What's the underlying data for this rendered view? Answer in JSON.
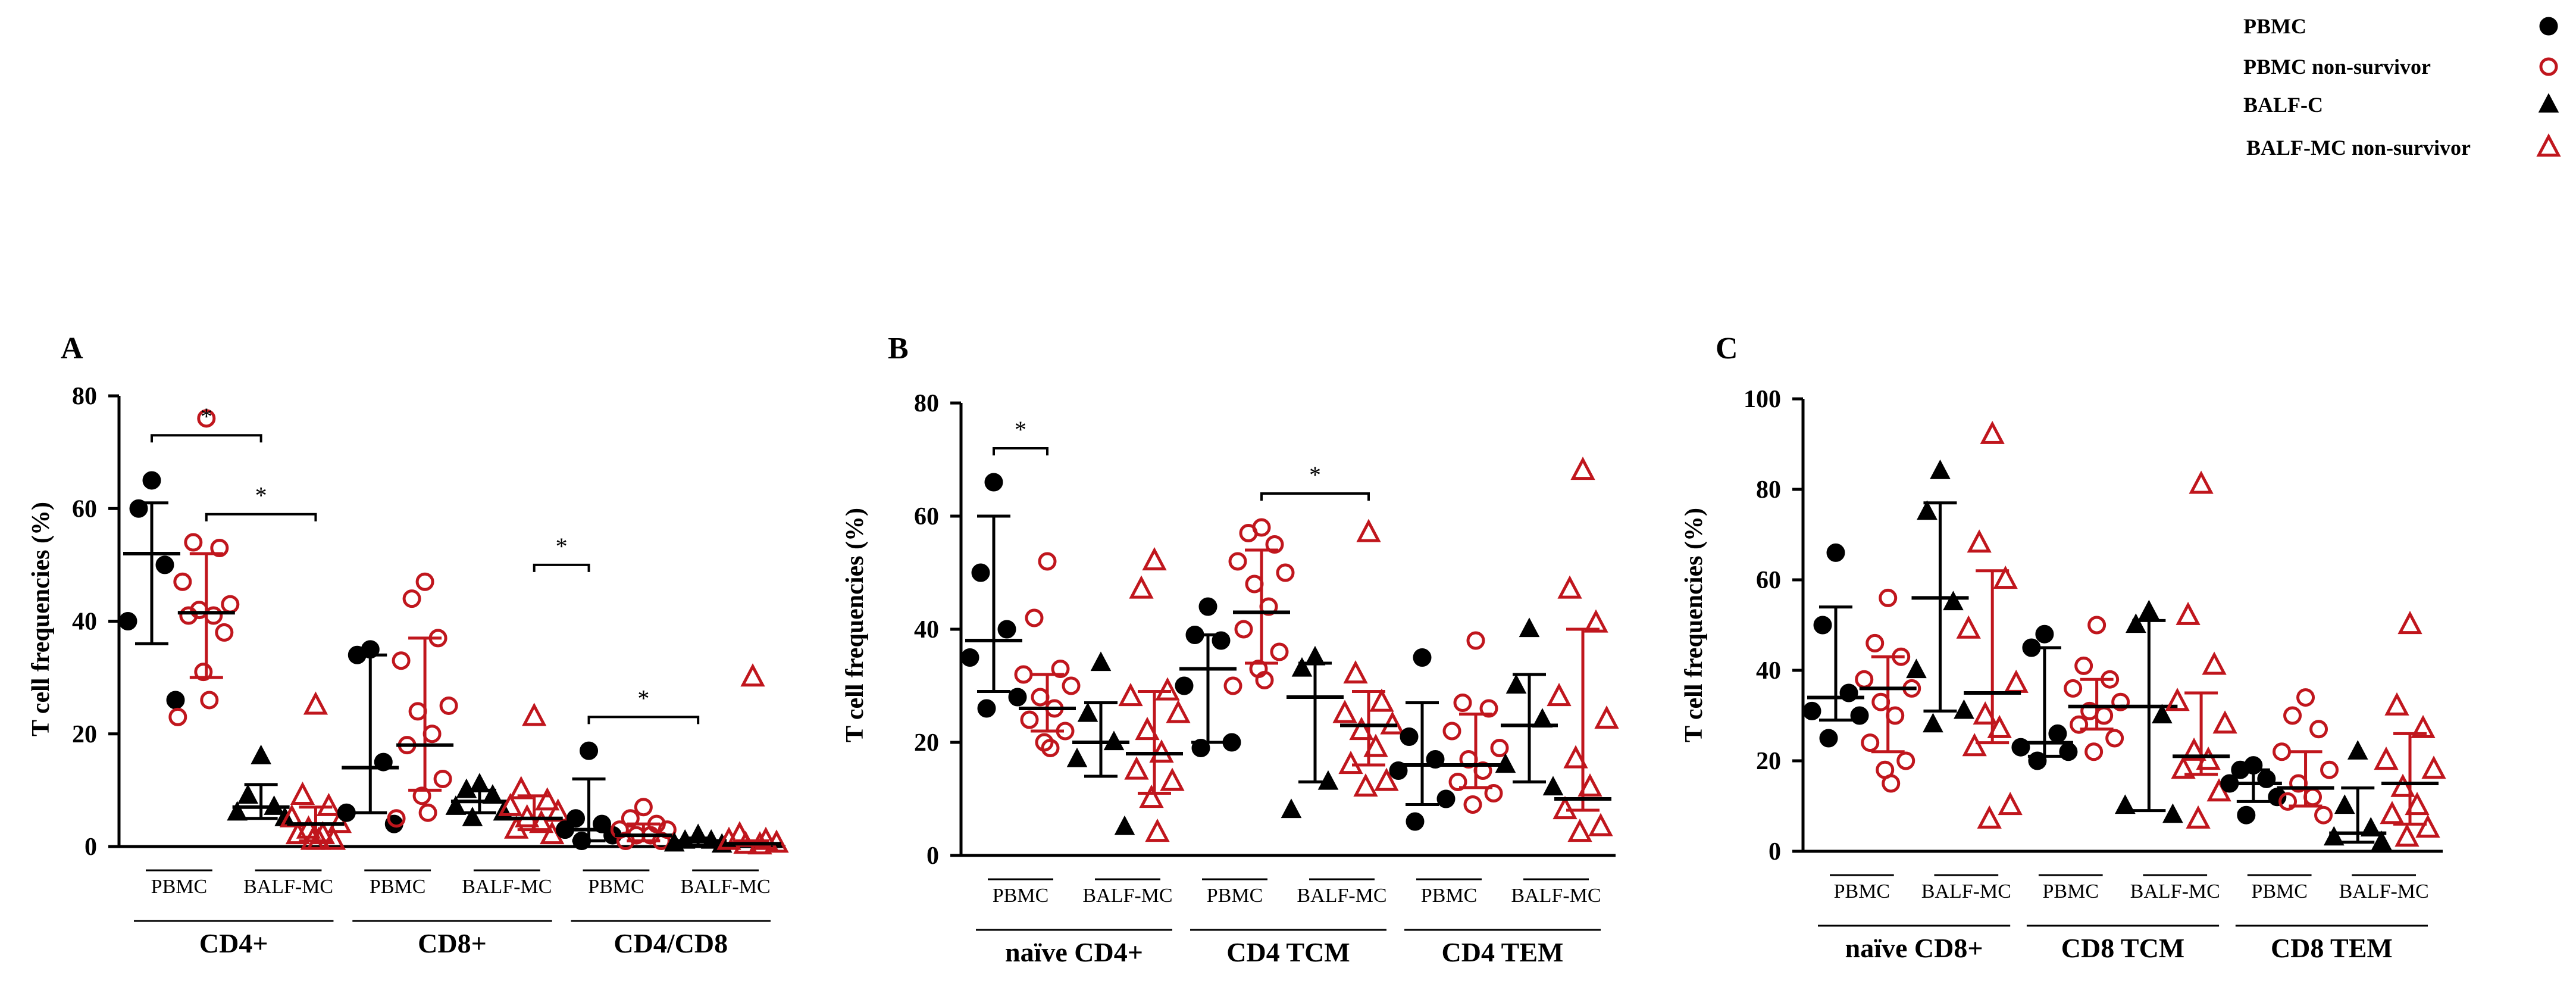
{
  "legend": {
    "items": [
      {
        "label": "PBMC",
        "marker": "circle",
        "filled": true,
        "color": "#000000"
      },
      {
        "label": "PBMC  non-survivor",
        "marker": "circle",
        "filled": false,
        "color": "#c0161d"
      },
      {
        "label": "BALF-C",
        "marker": "triangle",
        "filled": true,
        "color": "#000000"
      },
      {
        "label": "BALF-MC   non-survivor",
        "marker": "triangle",
        "filled": false,
        "color": "#c0161d"
      }
    ]
  },
  "colors": {
    "survivor": "#000000",
    "non_survivor": "#c0161d",
    "axis": "#000000"
  },
  "chart_data": [
    {
      "type": "scatter",
      "panel": "A",
      "ylabel": "T cell frequencies (%)",
      "ylim": [
        0,
        80
      ],
      "yticks": [
        0,
        20,
        40,
        60,
        80
      ],
      "groups": [
        {
          "label": "CD4+",
          "sublabels": [
            "PBMC",
            "BALF-MC"
          ]
        },
        {
          "label": "CD8+",
          "sublabels": [
            "PBMC",
            "BALF-MC"
          ]
        },
        {
          "label": "CD4/CD8",
          "sublabels": [
            "PBMC",
            "BALF-MC"
          ]
        }
      ],
      "series": [
        {
          "name": "PBMC",
          "group": 0,
          "marker": "circle",
          "filled": true,
          "values": [
            65,
            60,
            50,
            40,
            26
          ],
          "median": 52,
          "q1": 36,
          "q3": 61
        },
        {
          "name": "PBMC non-survivor",
          "group": 0,
          "marker": "circle",
          "filled": false,
          "values": [
            76,
            54,
            53,
            47,
            43,
            42,
            41,
            41,
            38,
            31,
            26,
            23
          ],
          "median": 41.5,
          "q1": 30,
          "q3": 52
        },
        {
          "name": "BALF-C",
          "group": 0,
          "marker": "triangle",
          "filled": true,
          "values": [
            16,
            9,
            7,
            6,
            5
          ],
          "median": 7,
          "q1": 5,
          "q3": 11
        },
        {
          "name": "BALF-MC non-survivor",
          "group": 0,
          "marker": "triangle",
          "filled": false,
          "values": [
            25,
            9,
            7,
            5,
            4,
            3,
            2,
            2,
            1,
            1,
            1
          ],
          "median": 4,
          "q1": 1,
          "q3": 7
        },
        {
          "name": "PBMC",
          "group": 1,
          "marker": "circle",
          "filled": true,
          "values": [
            35,
            34,
            15,
            6,
            4
          ],
          "median": 14,
          "q1": 6,
          "q3": 34
        },
        {
          "name": "PBMC non-survivor",
          "group": 1,
          "marker": "circle",
          "filled": false,
          "values": [
            47,
            44,
            37,
            33,
            25,
            24,
            20,
            18,
            12,
            9,
            6,
            5
          ],
          "median": 18,
          "q1": 10,
          "q3": 37
        },
        {
          "name": "BALF-C",
          "group": 1,
          "marker": "triangle",
          "filled": true,
          "values": [
            11,
            10,
            9,
            7,
            6,
            5
          ],
          "median": 8,
          "q1": 6,
          "q3": 10
        },
        {
          "name": "BALF-MC non-survivor",
          "group": 1,
          "marker": "triangle",
          "filled": false,
          "values": [
            23,
            10,
            8,
            7,
            6,
            5,
            4,
            3,
            2
          ],
          "median": 5,
          "q1": 3,
          "q3": 9
        },
        {
          "name": "PBMC",
          "group": 2,
          "marker": "circle",
          "filled": true,
          "values": [
            17,
            5,
            4,
            3,
            2,
            1
          ],
          "median": 3,
          "q1": 1,
          "q3": 12
        },
        {
          "name": "PBMC non-survivor",
          "group": 2,
          "marker": "circle",
          "filled": false,
          "values": [
            7,
            5,
            4,
            3,
            3,
            2,
            2,
            1,
            1
          ],
          "median": 2,
          "q1": 1,
          "q3": 4
        },
        {
          "name": "BALF-C",
          "group": 2,
          "marker": "triangle",
          "filled": true,
          "values": [
            2,
            1,
            1,
            0.5,
            0.3
          ],
          "median": 1,
          "q1": 0.3,
          "q3": 1.5
        },
        {
          "name": "BALF-MC non-survivor",
          "group": 2,
          "marker": "triangle",
          "filled": false,
          "values": [
            30,
            2,
            1,
            1,
            0.5,
            0.3,
            0.2
          ],
          "median": 0.5,
          "q1": 0.2,
          "q3": 1
        }
      ],
      "significance": [
        {
          "from": 0,
          "to": 2,
          "label": "*"
        },
        {
          "from": 1,
          "to": 3,
          "label": "*"
        },
        {
          "from": 7,
          "to": 8,
          "label": "*"
        },
        {
          "from": 8,
          "to": 10,
          "label": "*"
        }
      ]
    },
    {
      "type": "scatter",
      "panel": "B",
      "ylabel": "T cell frequencies (%)",
      "ylim": [
        0,
        80
      ],
      "yticks": [
        0,
        20,
        40,
        60,
        80
      ],
      "groups": [
        {
          "label": "naïve CD4+",
          "sublabels": [
            "PBMC",
            "BALF-MC"
          ]
        },
        {
          "label": "CD4 TCM",
          "sublabels": [
            "PBMC",
            "BALF-MC"
          ]
        },
        {
          "label": "CD4 TEM",
          "sublabels": [
            "PBMC",
            "BALF-MC"
          ]
        }
      ],
      "series": [
        {
          "name": "PBMC",
          "group": 0,
          "marker": "circle",
          "filled": true,
          "values": [
            66,
            50,
            40,
            35,
            28,
            26
          ],
          "median": 38,
          "q1": 29,
          "q3": 60
        },
        {
          "name": "PBMC non-survivor",
          "group": 0,
          "marker": "circle",
          "filled": false,
          "values": [
            52,
            42,
            33,
            32,
            30,
            28,
            26,
            24,
            22,
            20,
            19
          ],
          "median": 26,
          "q1": 22,
          "q3": 32
        },
        {
          "name": "BALF-C",
          "group": 0,
          "marker": "triangle",
          "filled": true,
          "values": [
            34,
            25,
            20,
            17,
            5
          ],
          "median": 20,
          "q1": 14,
          "q3": 27
        },
        {
          "name": "BALF-MC non-survivor",
          "group": 0,
          "marker": "triangle",
          "filled": false,
          "values": [
            52,
            47,
            29,
            28,
            25,
            22,
            18,
            15,
            13,
            10,
            4
          ],
          "median": 18,
          "q1": 11,
          "q3": 29
        },
        {
          "name": "PBMC",
          "group": 1,
          "marker": "circle",
          "filled": true,
          "values": [
            44,
            39,
            38,
            30,
            20,
            19
          ],
          "median": 33,
          "q1": 20,
          "q3": 39
        },
        {
          "name": "PBMC non-survivor",
          "group": 1,
          "marker": "circle",
          "filled": false,
          "values": [
            58,
            57,
            55,
            52,
            50,
            48,
            44,
            40,
            36,
            33,
            31,
            30
          ],
          "median": 43,
          "q1": 34,
          "q3": 54
        },
        {
          "name": "BALF-C",
          "group": 1,
          "marker": "triangle",
          "filled": true,
          "values": [
            35,
            33,
            13,
            8
          ],
          "median": 28,
          "q1": 13,
          "q3": 34
        },
        {
          "name": "BALF-MC non-survivor",
          "group": 1,
          "marker": "triangle",
          "filled": false,
          "values": [
            57,
            32,
            27,
            25,
            23,
            22,
            19,
            16,
            13,
            12
          ],
          "median": 23,
          "q1": 16,
          "q3": 29
        },
        {
          "name": "PBMC",
          "group": 2,
          "marker": "circle",
          "filled": true,
          "values": [
            35,
            21,
            17,
            15,
            10,
            6
          ],
          "median": 16,
          "q1": 9,
          "q3": 27
        },
        {
          "name": "PBMC non-survivor",
          "group": 2,
          "marker": "circle",
          "filled": false,
          "values": [
            38,
            27,
            26,
            22,
            19,
            17,
            15,
            13,
            11,
            9
          ],
          "median": 16,
          "q1": 12,
          "q3": 25
        },
        {
          "name": "BALF-C",
          "group": 2,
          "marker": "triangle",
          "filled": true,
          "values": [
            40,
            30,
            24,
            16,
            12
          ],
          "median": 23,
          "q1": 13,
          "q3": 32
        },
        {
          "name": "BALF-MC non-survivor",
          "group": 2,
          "marker": "triangle",
          "filled": false,
          "values": [
            68,
            47,
            41,
            28,
            24,
            17,
            12,
            8,
            5,
            4
          ],
          "median": 10,
          "q1": 8,
          "q3": 40
        }
      ],
      "significance": [
        {
          "from": 0,
          "to": 1,
          "label": "*"
        },
        {
          "from": 5,
          "to": 7,
          "label": "*"
        }
      ]
    },
    {
      "type": "scatter",
      "panel": "C",
      "ylabel": "T cell frequencies (%)",
      "ylim": [
        0,
        100
      ],
      "yticks": [
        0,
        20,
        40,
        60,
        80,
        100
      ],
      "groups": [
        {
          "label": "naïve CD8+",
          "sublabels": [
            "PBMC",
            "BALF-MC"
          ]
        },
        {
          "label": "CD8 TCM",
          "sublabels": [
            "PBMC",
            "BALF-MC"
          ]
        },
        {
          "label": "CD8 TEM",
          "sublabels": [
            "PBMC",
            "BALF-MC"
          ]
        }
      ],
      "series": [
        {
          "name": "PBMC",
          "group": 0,
          "marker": "circle",
          "filled": true,
          "values": [
            66,
            50,
            35,
            31,
            30,
            25
          ],
          "median": 34,
          "q1": 29,
          "q3": 54
        },
        {
          "name": "PBMC non-survivor",
          "group": 0,
          "marker": "circle",
          "filled": false,
          "values": [
            56,
            46,
            43,
            38,
            36,
            33,
            30,
            24,
            20,
            18,
            15
          ],
          "median": 36,
          "q1": 22,
          "q3": 43
        },
        {
          "name": "BALF-C",
          "group": 0,
          "marker": "triangle",
          "filled": true,
          "values": [
            84,
            75,
            55,
            40,
            31,
            28
          ],
          "median": 56,
          "q1": 31,
          "q3": 77
        },
        {
          "name": "BALF-MC non-survivor",
          "group": 0,
          "marker": "triangle",
          "filled": false,
          "values": [
            92,
            68,
            60,
            49,
            37,
            30,
            27,
            23,
            10,
            7
          ],
          "median": 35,
          "q1": 24,
          "q3": 62
        },
        {
          "name": "PBMC",
          "group": 1,
          "marker": "circle",
          "filled": true,
          "values": [
            48,
            45,
            26,
            23,
            22,
            20
          ],
          "median": 24,
          "q1": 21,
          "q3": 45
        },
        {
          "name": "PBMC non-survivor",
          "group": 1,
          "marker": "circle",
          "filled": false,
          "values": [
            50,
            41,
            38,
            36,
            33,
            31,
            30,
            28,
            25,
            22
          ],
          "median": 32,
          "q1": 27,
          "q3": 38
        },
        {
          "name": "BALF-C",
          "group": 1,
          "marker": "triangle",
          "filled": true,
          "values": [
            53,
            50,
            30,
            10,
            8
          ],
          "median": 32,
          "q1": 9,
          "q3": 51
        },
        {
          "name": "BALF-MC non-survivor",
          "group": 1,
          "marker": "triangle",
          "filled": false,
          "values": [
            81,
            52,
            41,
            33,
            28,
            22,
            20,
            18,
            13,
            7
          ],
          "median": 21,
          "q1": 17,
          "q3": 35
        },
        {
          "name": "PBMC",
          "group": 2,
          "marker": "circle",
          "filled": true,
          "values": [
            19,
            18,
            16,
            15,
            12,
            8
          ],
          "median": 15,
          "q1": 11,
          "q3": 18
        },
        {
          "name": "PBMC non-survivor",
          "group": 2,
          "marker": "circle",
          "filled": false,
          "values": [
            34,
            30,
            27,
            22,
            18,
            15,
            12,
            11,
            8
          ],
          "median": 14,
          "q1": 10,
          "q3": 22
        },
        {
          "name": "BALF-C",
          "group": 2,
          "marker": "triangle",
          "filled": true,
          "values": [
            22,
            10,
            5,
            3,
            2
          ],
          "median": 4,
          "q1": 2,
          "q3": 14
        },
        {
          "name": "BALF-MC non-survivor",
          "group": 2,
          "marker": "triangle",
          "filled": false,
          "values": [
            50,
            32,
            27,
            20,
            18,
            14,
            10,
            8,
            5,
            3
          ],
          "median": 15,
          "q1": 6,
          "q3": 26
        }
      ],
      "significance": []
    }
  ]
}
